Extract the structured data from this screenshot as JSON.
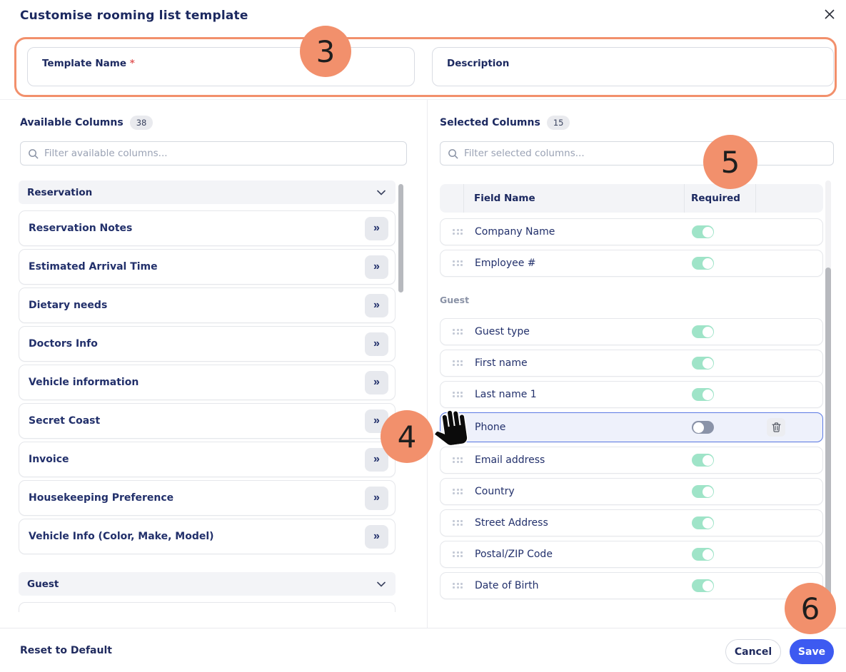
{
  "modal": {
    "title": "Customise rooming list template"
  },
  "icons": {
    "close": "x-close",
    "search": "magnifier",
    "move_right": "double-chevron-right",
    "section_chevron": "chevron-down",
    "drag": "six-dot-grid",
    "trash": "trash-can",
    "hand": "grab-hand-cursor"
  },
  "form": {
    "template_name": {
      "label": "Template Name",
      "required_mark": "*",
      "value": ""
    },
    "description": {
      "label": "Description",
      "value": ""
    }
  },
  "available": {
    "title": "Available Columns",
    "count": "38",
    "filter_placeholder": "Filter available columns...",
    "sections": [
      {
        "label": "Reservation",
        "items": [
          "Reservation Notes",
          "Estimated Arrival Time",
          "Dietary needs",
          "Doctors Info",
          "Vehicle information",
          "Secret Coast",
          "Invoice",
          "Housekeeping Preference",
          "Vehicle Info (Color, Make, Model)"
        ]
      },
      {
        "label": "Guest",
        "items": []
      }
    ]
  },
  "selected": {
    "title": "Selected Columns",
    "count": "15",
    "filter_placeholder": "Filter selected columns...",
    "headers": {
      "field_name": "Field Name",
      "required": "Required"
    },
    "groups": [
      {
        "label": "",
        "rows": [
          {
            "name": "Company Name",
            "required": true
          },
          {
            "name": "Employee #",
            "required": true
          }
        ]
      },
      {
        "label": "Guest",
        "rows": [
          {
            "name": "Guest type",
            "required": true
          },
          {
            "name": "First name",
            "required": true
          },
          {
            "name": "Last name 1",
            "required": true
          },
          {
            "name": "Phone",
            "required": false,
            "selected": true,
            "deletable": true
          },
          {
            "name": "Email address",
            "required": true
          },
          {
            "name": "Country",
            "required": true
          },
          {
            "name": "Street Address",
            "required": true
          },
          {
            "name": "Postal/ZIP Code",
            "required": true
          },
          {
            "name": "Date of Birth",
            "required": true
          }
        ]
      }
    ]
  },
  "footer": {
    "reset_label": "Reset to Default",
    "cancel_label": "Cancel",
    "save_label": "Save"
  },
  "annotations": {
    "step3": "3",
    "step4": "4",
    "step5": "5",
    "step6": "6"
  },
  "colors": {
    "annotation_orange": "#F2906C",
    "toggle_on_green": "#9FE4C8",
    "toggle_off_gray": "#8A93A8",
    "save_blue": "#3D5AF1",
    "selected_row_border": "#5B79E3",
    "heading_navy": "#1C2960",
    "row_text_navy": "#22306B"
  }
}
